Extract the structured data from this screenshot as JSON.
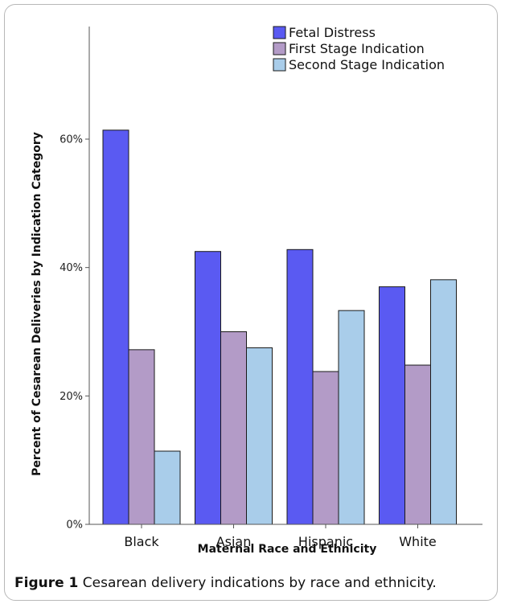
{
  "caption": {
    "label": "Figure 1",
    "text": " Cesarean delivery indications by race and ethnicity."
  },
  "chart_data": {
    "type": "bar",
    "xlabel": "Maternal Race and Ethnicity",
    "ylabel": "Percent of Cesarean Deliveries by Indication Category",
    "categories": [
      "Black",
      "Asian",
      "Hispanic",
      "White"
    ],
    "ylim": [
      0,
      70
    ],
    "yticks": [
      0,
      20,
      40,
      60
    ],
    "ytick_labels": [
      "0%",
      "20%",
      "40%",
      "60%"
    ],
    "grid": false,
    "legend": "top-right",
    "series": [
      {
        "name": "Fetal Distress",
        "color": "#5a5af2",
        "values": [
          61.4,
          42.5,
          42.8,
          37.0
        ]
      },
      {
        "name": "First Stage Indication",
        "color": "#b39bc7",
        "values": [
          27.2,
          30.0,
          23.8,
          24.8
        ]
      },
      {
        "name": "Second Stage Indication",
        "color": "#a9cdea",
        "values": [
          11.4,
          27.5,
          33.3,
          38.1
        ]
      }
    ]
  }
}
